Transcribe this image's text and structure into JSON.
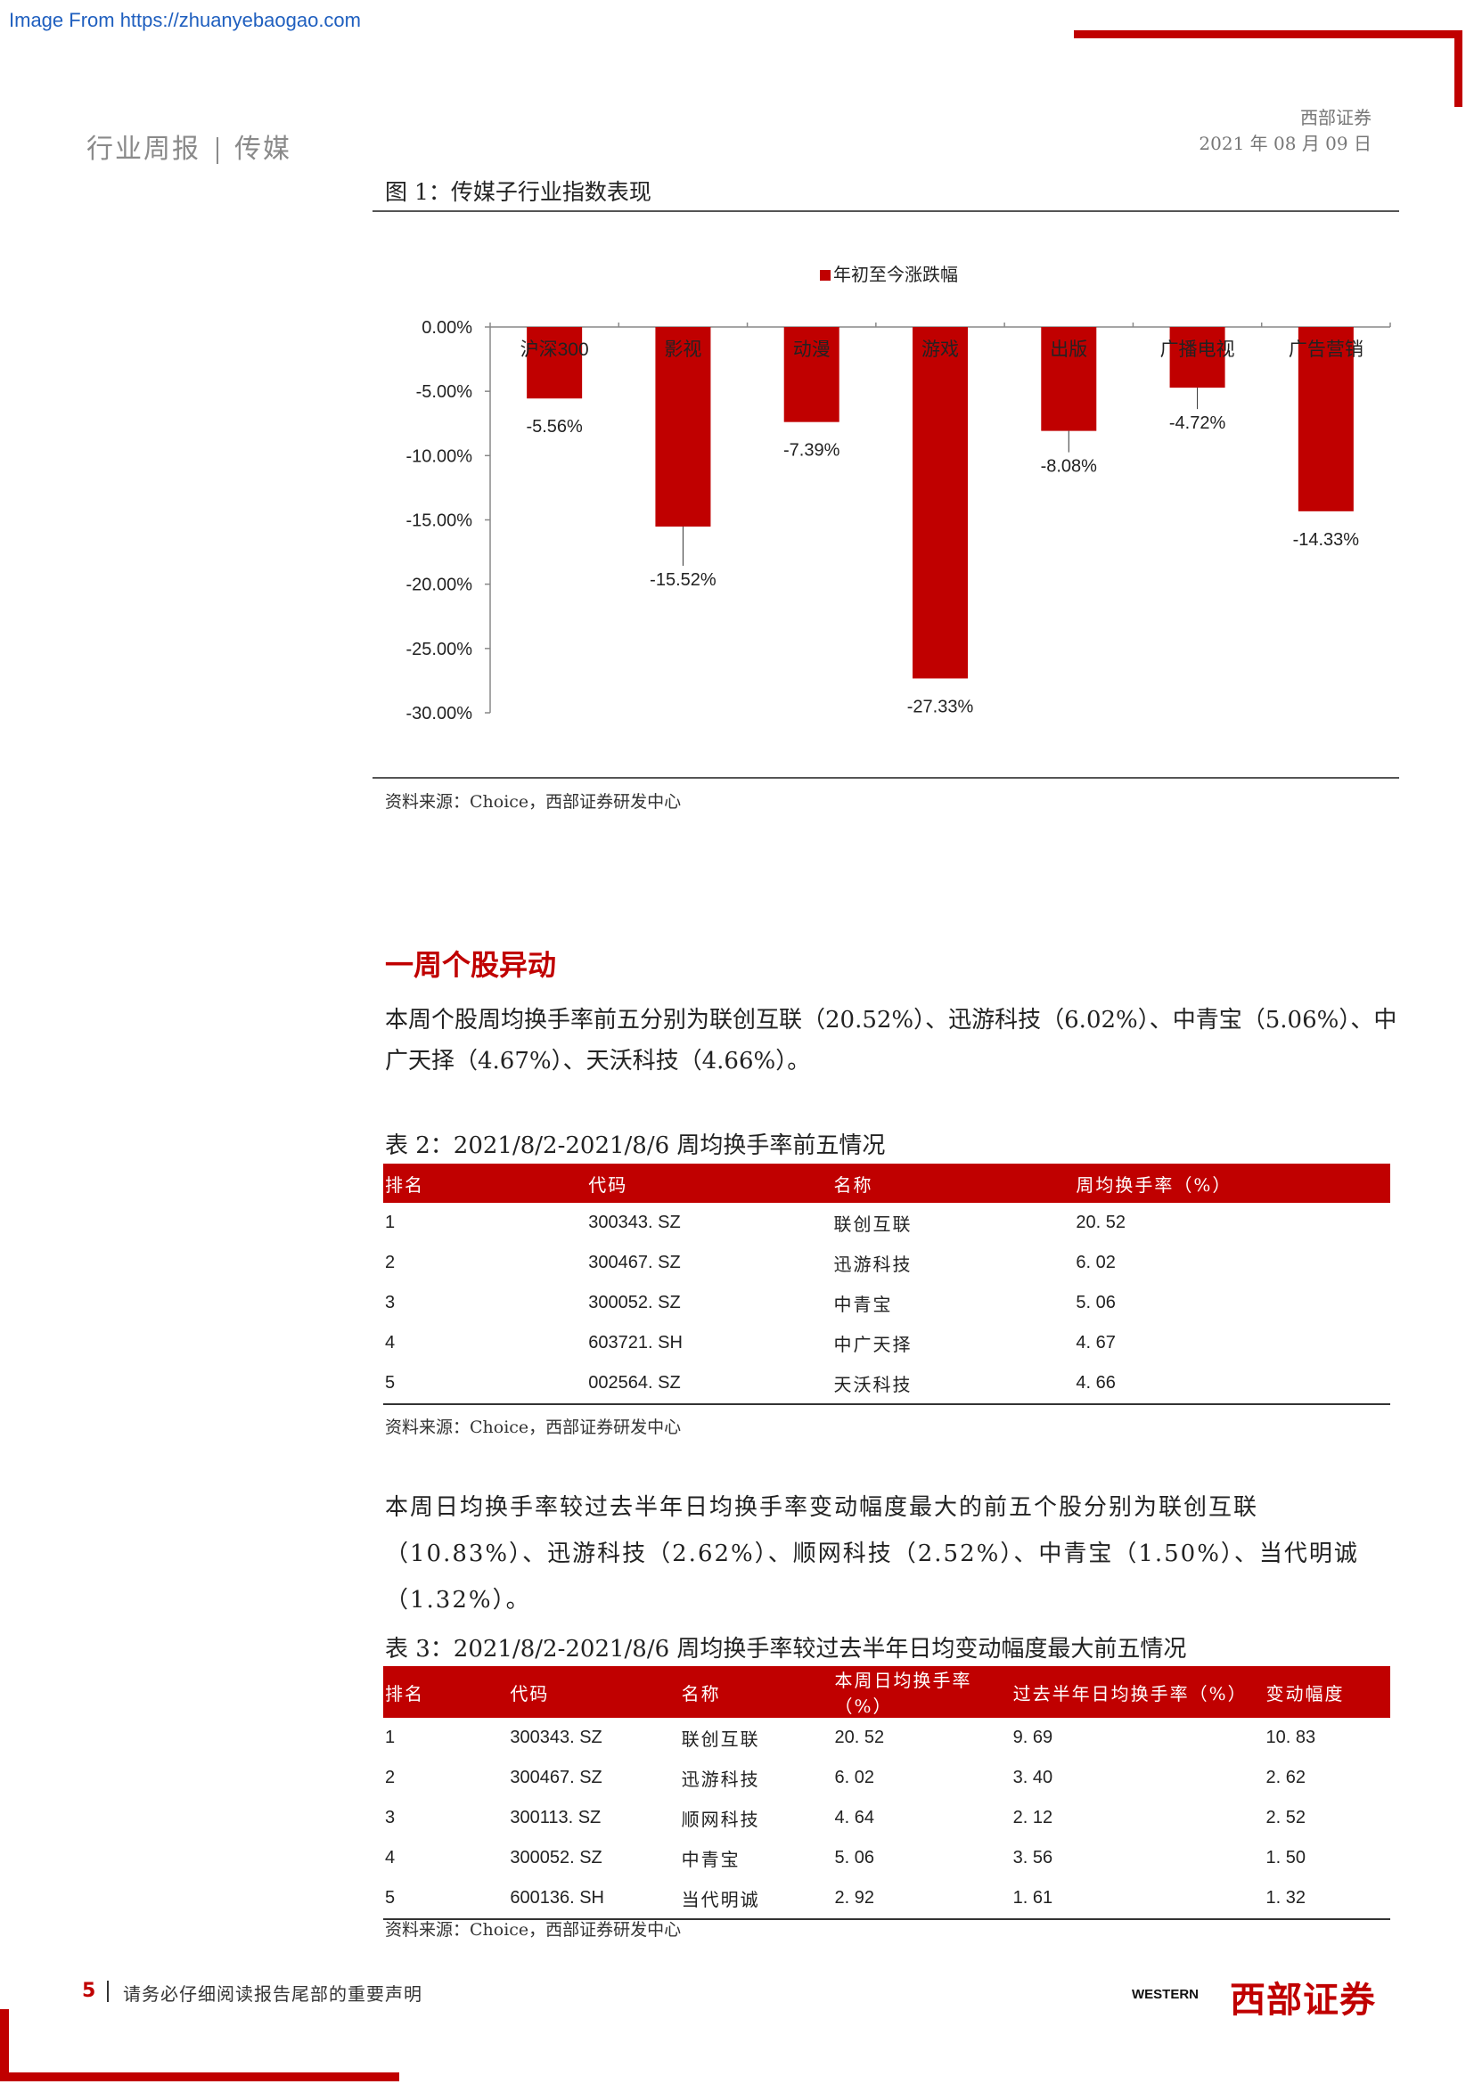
{
  "watermark": "Image From https://zhuanyebaogao.com",
  "header": {
    "report_type": "行业周报",
    "industry": "传媒",
    "company": "西部证券",
    "date": "2021 年 08 月 09 日"
  },
  "figure1": {
    "title": "图 1：传媒子行业指数表现",
    "source": "资料来源：Choice，西部证券研发中心"
  },
  "chart_data": {
    "type": "bar",
    "legend": "年初至今涨跌幅",
    "legend_position": "top-center",
    "categories": [
      "沪深300",
      "影视",
      "动漫",
      "游戏",
      "出版",
      "广播电视",
      "广告营销"
    ],
    "values": [
      -5.56,
      -15.52,
      -7.39,
      -27.33,
      -8.08,
      -4.72,
      -14.33
    ],
    "value_labels": [
      "-5.56%",
      "-15.52%",
      "-7.39%",
      "-27.33%",
      "-8.08%",
      "-4.72%",
      "-14.33%"
    ],
    "ylim": [
      -30,
      0
    ],
    "yticks": [
      0,
      -5,
      -10,
      -15,
      -20,
      -25,
      -30
    ],
    "ytick_labels": [
      "0.00%",
      "-5.00%",
      "-10.00%",
      "-15.00%",
      "-20.00%",
      "-25.00%",
      "-30.00%"
    ],
    "bar_color": "#c00000",
    "grid": false
  },
  "section": {
    "title": "一周个股异动",
    "para1": "本周个股周均换手率前五分别为联创互联（20.52%）、迅游科技（6.02%）、中青宝（5.06%）、中广天择（4.67%）、天沃科技（4.66%）。",
    "para2": "本周日均换手率较过去半年日均换手率变动幅度最大的前五个股分别为联创互联（10.83%）、迅游科技（2.62%）、顺网科技（2.52%）、中青宝（1.50%）、当代明诚（1.32%）。"
  },
  "table2": {
    "title": "表 2：2021/8/2-2021/8/6 周均换手率前五情况",
    "headers": [
      "排名",
      "代码",
      "名称",
      "周均换手率（%）"
    ],
    "rows": [
      [
        "1",
        "300343. SZ",
        "联创互联",
        "20. 52"
      ],
      [
        "2",
        "300467. SZ",
        "迅游科技",
        "6. 02"
      ],
      [
        "3",
        "300052. SZ",
        "中青宝",
        "5. 06"
      ],
      [
        "4",
        "603721. SH",
        "中广天择",
        "4. 67"
      ],
      [
        "5",
        "002564. SZ",
        "天沃科技",
        "4. 66"
      ]
    ],
    "source": "资料来源：Choice，西部证券研发中心"
  },
  "table3": {
    "title": "表 3：2021/8/2-2021/8/6 周均换手率较过去半年日均变动幅度最大前五情况",
    "headers": [
      "排名",
      "代码",
      "名称",
      "本周日均换手率（%）",
      "过去半年日均换手率（%）",
      "变动幅度"
    ],
    "rows": [
      [
        "1",
        "300343. SZ",
        "联创互联",
        "20. 52",
        "9. 69",
        "10. 83"
      ],
      [
        "2",
        "300467. SZ",
        "迅游科技",
        "6. 02",
        "3. 40",
        "2. 62"
      ],
      [
        "3",
        "300113. SZ",
        "顺网科技",
        "4. 64",
        "2. 12",
        "2. 52"
      ],
      [
        "4",
        "300052. SZ",
        "中青宝",
        "5. 06",
        "3. 56",
        "1. 50"
      ],
      [
        "5",
        "600136. SH",
        "当代明诚",
        "2. 92",
        "1. 61",
        "1. 32"
      ]
    ],
    "source": "资料来源：Choice，西部证券研发中心"
  },
  "footer": {
    "page_number": "5",
    "notice": "请务必仔细阅读报告尾部的重要声明",
    "logo_en": "WESTERN",
    "logo_cn": "西部证券"
  }
}
